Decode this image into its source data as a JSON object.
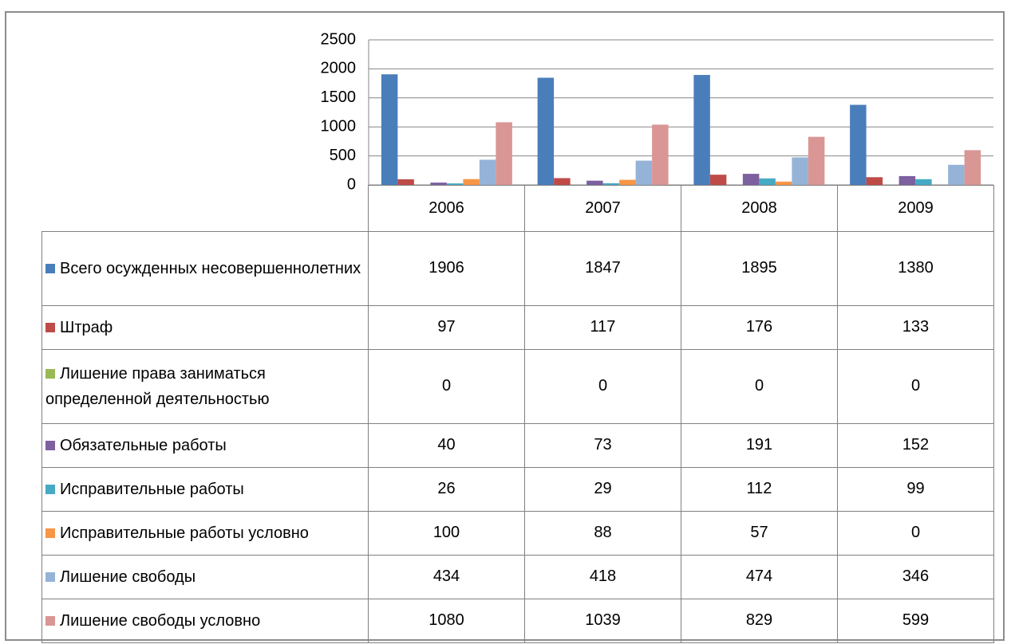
{
  "chart_data": {
    "type": "bar",
    "categories": [
      "2006",
      "2007",
      "2008",
      "2009"
    ],
    "series": [
      {
        "name": "Всего осужденных несовершеннолетних",
        "color": "#4a7ebb",
        "values": [
          1906,
          1847,
          1895,
          1380
        ]
      },
      {
        "name": "Штраф",
        "color": "#be4b48",
        "values": [
          97,
          117,
          176,
          133
        ]
      },
      {
        "name": "Лишение права заниматься определенной деятельностью",
        "color": "#98b954",
        "values": [
          0,
          0,
          0,
          0
        ]
      },
      {
        "name": "Обязательные работы",
        "color": "#7d60a0",
        "values": [
          40,
          73,
          191,
          152
        ]
      },
      {
        "name": "Исправительные работы",
        "color": "#46aac5",
        "values": [
          26,
          29,
          112,
          99
        ]
      },
      {
        "name": "Исправительные работы условно",
        "color": "#f79646",
        "values": [
          100,
          88,
          57,
          0
        ]
      },
      {
        "name": "Лишение свободы",
        "color": "#95b3d7",
        "values": [
          434,
          418,
          474,
          346
        ]
      },
      {
        "name": "Лишение свободы условно",
        "color": "#d99694",
        "values": [
          1080,
          1039,
          829,
          599
        ]
      }
    ],
    "ylim": [
      0,
      2500
    ],
    "yticks": [
      0,
      500,
      1000,
      1500,
      2000,
      2500
    ],
    "grid": true
  }
}
